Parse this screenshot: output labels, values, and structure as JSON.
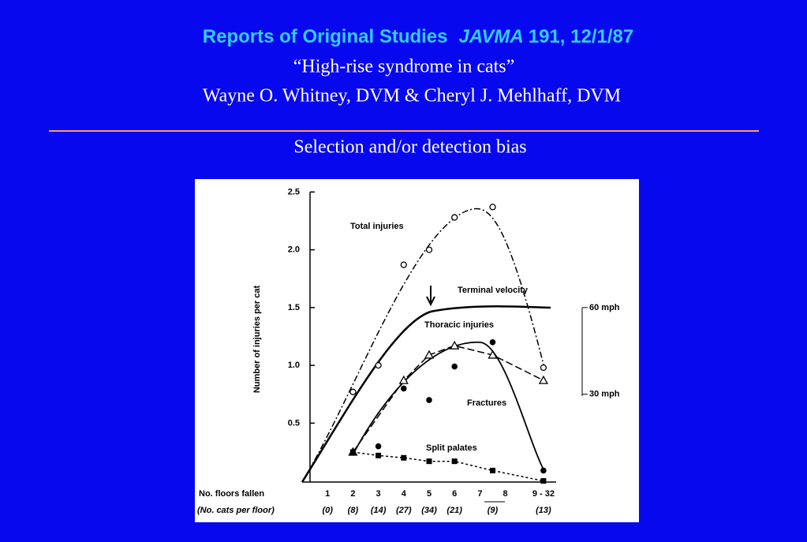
{
  "header": {
    "title": "Reports of Original Studies",
    "journal": "JAVMA",
    "volume": "191",
    "date": ", 12/1/87",
    "subtitle": "“High-rise syndrome in cats”",
    "authors": "Wayne O. Whitney, DVM & Cheryl J. Mehlhaff, DVM",
    "topic": "Selection and/or detection bias"
  },
  "chart_data": {
    "type": "scatter",
    "ylabel": "Number of injuries per cat",
    "xlabel": "No. floors fallen",
    "cats_label": "(No. cats per floor)",
    "xlim": [
      0,
      10
    ],
    "ylim": [
      0,
      2.5
    ],
    "y2lim": [
      0,
      100
    ],
    "xticks": [
      1,
      2,
      3,
      4,
      5,
      6,
      7,
      8,
      {
        "value": 9.5,
        "label": "9 - 32"
      }
    ],
    "yticks": [
      0.5,
      {
        "value": 1,
        "label": "1.0"
      },
      1.5,
      {
        "value": 2,
        "label": "2.0"
      },
      2.5
    ],
    "y2ticks": [
      {
        "value": 30,
        "label": "30 mph"
      },
      {
        "value": 60,
        "label": "60 mph"
      }
    ],
    "cat_counts": {
      "x": [
        1,
        2,
        3,
        4,
        5,
        6,
        7.5,
        9.5
      ],
      "labels": [
        "(0)",
        "(8)",
        "(14)",
        "(27)",
        "(34)",
        "(21)",
        "(9)",
        "(13)"
      ]
    },
    "annotations": [
      "Terminal velocity"
    ],
    "series": [
      {
        "name": "Total injuries",
        "marker": "open-circle",
        "x": [
          2,
          3,
          4,
          5,
          6,
          7.5,
          9.5
        ],
        "values": [
          0.77,
          1.0,
          1.87,
          2.0,
          2.28,
          2.37,
          0.98
        ]
      },
      {
        "name": "Thoracic injuries",
        "marker": "open-triangle",
        "line": "dashed",
        "x": [
          2,
          4,
          5,
          6,
          7.5,
          9.5
        ],
        "values": [
          0.25,
          0.87,
          1.09,
          1.17,
          1.09,
          0.87
        ]
      },
      {
        "name": "Fractures",
        "marker": "filled-circle",
        "x": [
          3,
          4,
          5,
          6,
          7.5,
          9.5
        ],
        "values": [
          0.3,
          0.8,
          0.7,
          0.99,
          1.2,
          0.09
        ]
      },
      {
        "name": "Split palates",
        "marker": "filled-square",
        "line": "dotted",
        "x": [
          2,
          3,
          4,
          5,
          6,
          7.5,
          9.5
        ],
        "values": [
          0.25,
          0.22,
          0.2,
          0.17,
          0.17,
          0.09,
          0.0
        ]
      }
    ]
  }
}
